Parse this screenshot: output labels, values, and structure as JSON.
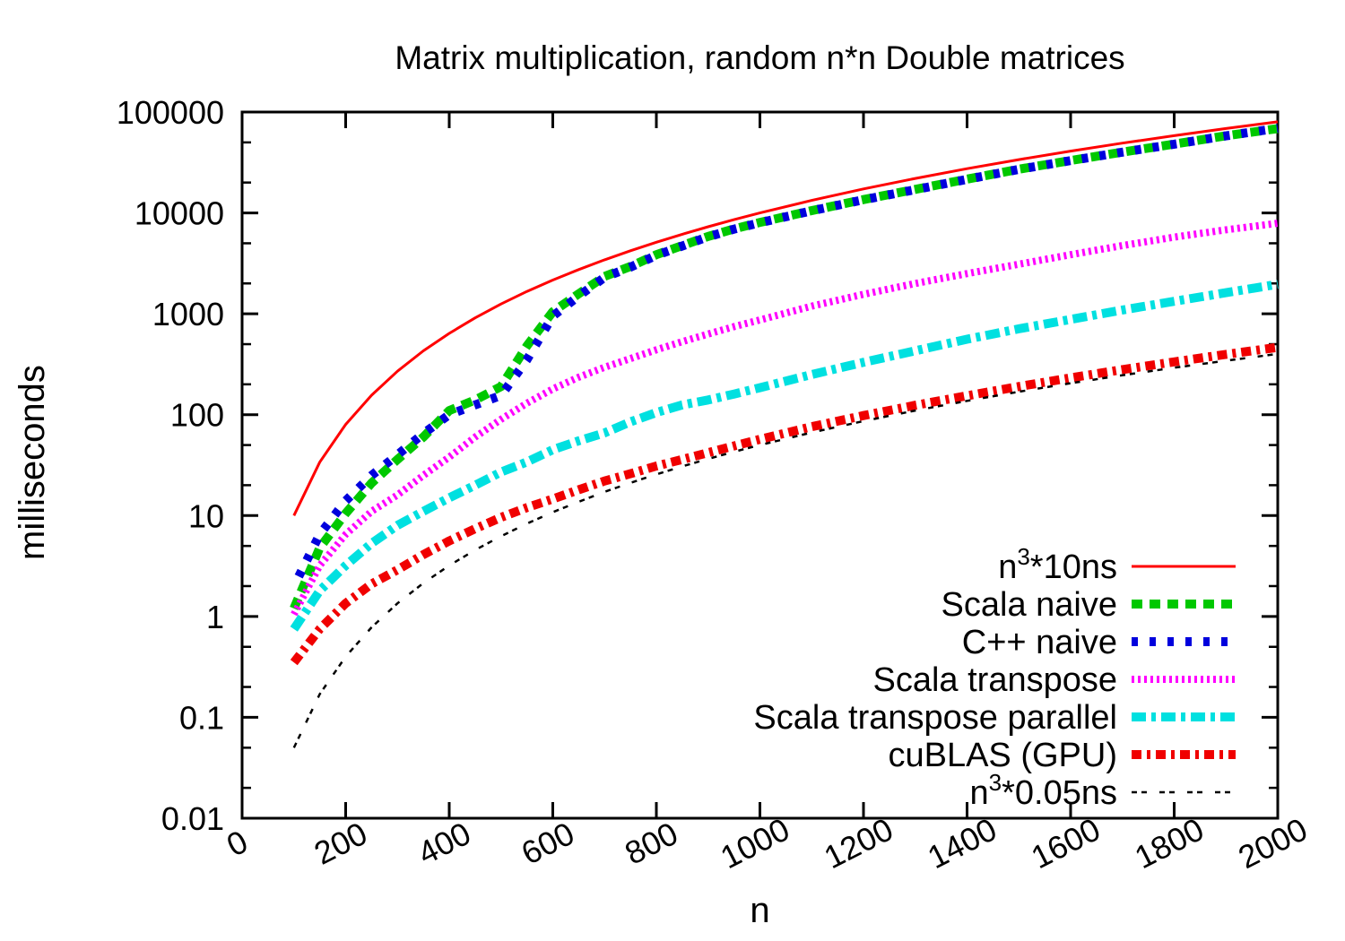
{
  "chart_data": {
    "type": "line",
    "title": "Matrix multiplication, random n*n Double matrices",
    "xlabel": "n",
    "ylabel": "milliseconds",
    "xlim": [
      0,
      2000
    ],
    "ylim": [
      0.01,
      100000
    ],
    "yscale": "log",
    "grid": false,
    "legend_position": "inside-bottom-right",
    "x_ticks": [
      0,
      200,
      400,
      600,
      800,
      1000,
      1200,
      1400,
      1600,
      1800,
      2000
    ],
    "y_ticks": [
      [
        100000,
        "100000"
      ],
      [
        10000,
        "10000"
      ],
      [
        1000,
        "1000"
      ],
      [
        100,
        "100"
      ],
      [
        10,
        "10"
      ],
      [
        1,
        "1"
      ],
      [
        0.1,
        "0.1"
      ],
      [
        0.01,
        "0.01"
      ]
    ],
    "x": [
      100,
      150,
      200,
      250,
      300,
      350,
      400,
      450,
      500,
      550,
      600,
      650,
      700,
      750,
      800,
      850,
      900,
      950,
      1000,
      1100,
      1200,
      1300,
      1400,
      1500,
      1600,
      1700,
      1800,
      1900,
      2000
    ],
    "series": [
      {
        "name": "n³*10ns",
        "slug": "n3-10ns",
        "label_parts": [
          [
            "n",
            0
          ],
          [
            "3",
            1
          ],
          [
            "*10ns",
            0
          ]
        ],
        "color": "#ff0000",
        "width": 3,
        "dash": "solid",
        "values": [
          10,
          33.8,
          80,
          156,
          270,
          429,
          640,
          911,
          1250,
          1664,
          2160,
          2746,
          3430,
          4219,
          5120,
          6141,
          7290,
          8574,
          10000,
          13310,
          17280,
          21970,
          27440,
          33750,
          40960,
          49130,
          58320,
          68590,
          80000
        ]
      },
      {
        "name": "Scala naive",
        "slug": "scala-naive",
        "label_parts": [
          [
            "Scala naive",
            0
          ]
        ],
        "color": "#00c800",
        "width": 10,
        "dash": "heavy-dash",
        "values": [
          1.2,
          4.8,
          10.5,
          21,
          36,
          60,
          110,
          140,
          190,
          480,
          1050,
          1580,
          2350,
          2950,
          3850,
          4750,
          5850,
          6950,
          8050,
          10550,
          13550,
          17100,
          21600,
          27100,
          33100,
          40100,
          48100,
          58100,
          68500
        ]
      },
      {
        "name": "C++ naive",
        "slug": "cpp-naive",
        "label_parts": [
          [
            "C++ naive",
            0
          ]
        ],
        "color": "#0000dd",
        "width": 10,
        "dash": "heavy-dot",
        "values": [
          2,
          6.5,
          14,
          25,
          40,
          65,
          100,
          125,
          155,
          350,
          950,
          1500,
          2300,
          2900,
          3800,
          4700,
          5800,
          6900,
          8000,
          10500,
          13500,
          17000,
          21500,
          27000,
          33000,
          40000,
          48000,
          58000,
          69000
        ]
      },
      {
        "name": "Scala transpose",
        "slug": "scala-transpose",
        "label_parts": [
          [
            "Scala transpose",
            0
          ]
        ],
        "color": "#ff00ff",
        "width": 8,
        "dash": "fine-dot",
        "values": [
          1.05,
          3.2,
          6.5,
          11,
          16,
          25,
          38,
          60,
          90,
          130,
          180,
          235,
          295,
          360,
          440,
          530,
          630,
          745,
          870,
          1190,
          1560,
          2000,
          2500,
          3100,
          3850,
          4750,
          5750,
          6800,
          7900
        ]
      },
      {
        "name": "Scala transpose parallel",
        "slug": "scala-transpose-parallel",
        "label_parts": [
          [
            "Scala transpose parallel",
            0
          ]
        ],
        "color": "#00e0e0",
        "width": 10,
        "dash": "dash-dot-long",
        "values": [
          0.75,
          1.8,
          3.2,
          5.3,
          8,
          11,
          15,
          20,
          27,
          34,
          45,
          55,
          66,
          85,
          105,
          125,
          140,
          160,
          185,
          250,
          330,
          430,
          560,
          710,
          880,
          1090,
          1330,
          1620,
          1960
        ]
      },
      {
        "name": "cuBLAS (GPU)",
        "slug": "cublas-gpu",
        "label_parts": [
          [
            "cuBLAS (GPU)",
            0
          ]
        ],
        "color": "#f00000",
        "width": 10,
        "dash": "dash-dot",
        "values": [
          0.35,
          0.75,
          1.35,
          2.1,
          2.9,
          4.1,
          5.6,
          7.4,
          9.6,
          12,
          14.6,
          18,
          22,
          26,
          31,
          36,
          42,
          49,
          57,
          76,
          98,
          124,
          154,
          190,
          232,
          280,
          334,
          396,
          465
        ]
      },
      {
        "name": "n³*0.05ns",
        "slug": "n3-005ns",
        "label_parts": [
          [
            "n",
            0
          ],
          [
            "3",
            1
          ],
          [
            "*0.05ns",
            0
          ]
        ],
        "color": "#000000",
        "width": 2.5,
        "dash": "double-dash",
        "values": [
          0.05,
          0.17,
          0.4,
          0.78,
          1.35,
          2.14,
          3.2,
          4.56,
          6.25,
          8.32,
          10.8,
          13.7,
          17.2,
          21.1,
          25.6,
          30.7,
          36.5,
          42.9,
          50,
          66.6,
          86.4,
          110,
          137,
          169,
          205,
          246,
          292,
          343,
          400
        ]
      }
    ]
  }
}
